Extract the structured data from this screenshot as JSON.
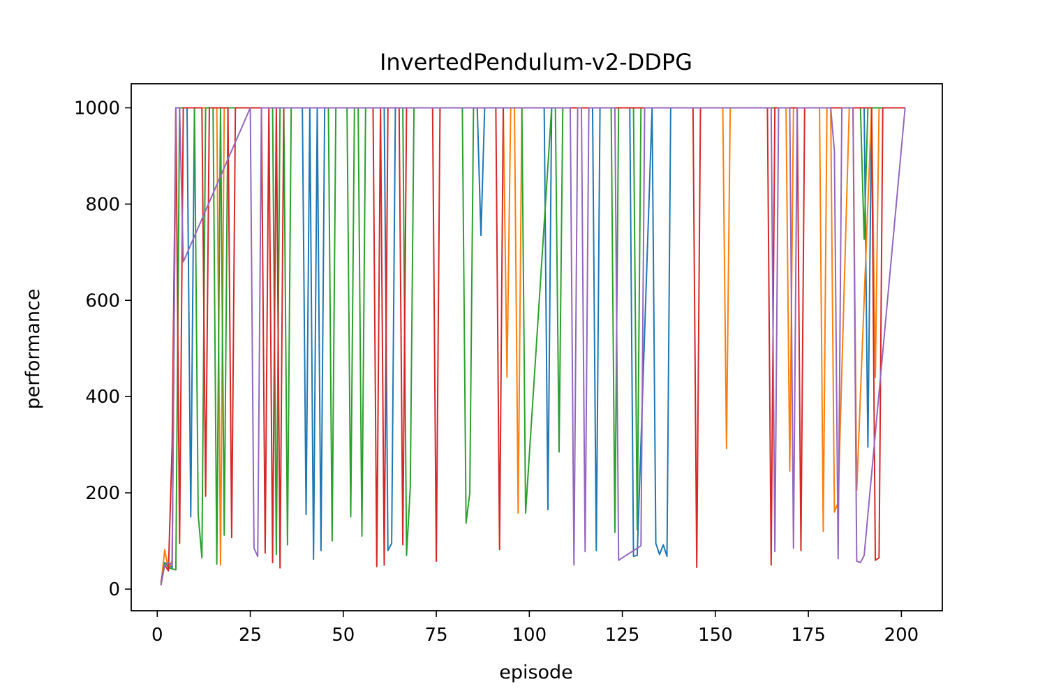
{
  "chart_data": {
    "type": "line",
    "title": "InvertedPendulum-v2-DDPG",
    "xlabel": "episode",
    "ylabel": "performance",
    "xlim": [
      -7,
      211
    ],
    "ylim": [
      -45,
      1050
    ],
    "xticks": [
      0,
      25,
      50,
      75,
      100,
      125,
      150,
      175,
      200
    ],
    "yticks": [
      0,
      200,
      400,
      600,
      800,
      1000
    ],
    "grid": false,
    "legend": "none",
    "series": [
      {
        "color": "#1f77b4",
        "x": [
          1,
          2,
          3,
          4,
          5,
          7,
          8,
          9,
          10,
          39,
          40,
          41,
          42,
          43,
          44,
          45,
          46,
          61,
          62,
          63,
          64,
          85,
          86,
          87,
          88,
          104,
          105,
          106,
          107,
          117,
          118,
          119,
          127,
          128,
          129,
          133,
          134,
          135,
          136,
          137,
          138,
          190,
          191,
          192,
          201
        ],
        "y": [
          10,
          55,
          50,
          45,
          1000,
          1000,
          1000,
          150,
          1000,
          1000,
          155,
          1000,
          62,
          1000,
          80,
          1000,
          1000,
          1000,
          80,
          95,
          1000,
          1000,
          1000,
          735,
          1000,
          1000,
          165,
          1000,
          1000,
          1000,
          80,
          1000,
          1000,
          68,
          70,
          1000,
          95,
          72,
          92,
          68,
          1000,
          1000,
          295,
          1000,
          1000
        ]
      },
      {
        "color": "#ff7f0e",
        "x": [
          1,
          2,
          3,
          4,
          5,
          6,
          15,
          16,
          17,
          18,
          92,
          93,
          94,
          95,
          96,
          97,
          98,
          152,
          153,
          154,
          169,
          170,
          171,
          178,
          179,
          180,
          181,
          182,
          183,
          186,
          187,
          188,
          192,
          193,
          194,
          201
        ],
        "y": [
          8,
          82,
          40,
          60,
          1000,
          1000,
          1000,
          1000,
          50,
          1000,
          1000,
          1000,
          440,
          1000,
          1000,
          158,
          1000,
          1000,
          292,
          1000,
          1000,
          245,
          1000,
          1000,
          120,
          1000,
          1000,
          160,
          180,
          1000,
          1000,
          205,
          1000,
          440,
          1000,
          1000
        ]
      },
      {
        "color": "#2ca02c",
        "x": [
          1,
          2,
          3,
          4,
          5,
          6,
          9,
          10,
          11,
          12,
          13,
          15,
          16,
          17,
          18,
          19,
          24,
          27,
          28,
          31,
          32,
          33,
          34,
          35,
          36,
          46,
          47,
          48,
          51,
          52,
          53,
          54,
          55,
          56,
          66,
          67,
          68,
          69,
          82,
          83,
          84,
          85,
          98,
          99,
          106,
          107,
          108,
          109,
          122,
          123,
          124,
          128,
          129,
          130,
          189,
          190,
          191,
          201
        ],
        "y": [
          12,
          55,
          45,
          42,
          40,
          1000,
          1000,
          1000,
          155,
          65,
          1000,
          1000,
          52,
          1000,
          112,
          1000,
          1000,
          1000,
          1000,
          1000,
          72,
          1000,
          1000,
          92,
          1000,
          1000,
          100,
          1000,
          1000,
          150,
          1000,
          1000,
          110,
          1000,
          1000,
          70,
          210,
          1000,
          1000,
          137,
          200,
          1000,
          1000,
          158,
          1000,
          1000,
          285,
          1000,
          1000,
          118,
          1000,
          1000,
          123,
          1000,
          1000,
          727,
          1000,
          1000
        ]
      },
      {
        "color": "#d62728",
        "x": [
          1,
          2,
          3,
          4,
          5,
          6,
          7,
          11,
          12,
          13,
          14,
          19,
          20,
          21,
          28,
          29,
          30,
          31,
          32,
          33,
          34,
          58,
          59,
          60,
          61,
          62,
          65,
          66,
          67,
          74,
          75,
          76,
          91,
          92,
          93,
          105,
          106,
          144,
          145,
          146,
          164,
          165,
          166,
          172,
          173,
          174,
          190,
          192,
          193,
          194,
          195,
          201
        ],
        "y": [
          15,
          50,
          38,
          300,
          1000,
          95,
          1000,
          1000,
          1000,
          193,
          1000,
          1000,
          107,
          1000,
          1000,
          75,
          1000,
          55,
          1000,
          44,
          1000,
          1000,
          47,
          1000,
          50,
          1000,
          1000,
          92,
          1000,
          1000,
          58,
          1000,
          1000,
          82,
          1000,
          1000,
          1000,
          1000,
          45,
          1000,
          1000,
          50,
          1000,
          1000,
          80,
          1000,
          1000,
          1000,
          60,
          65,
          1000,
          1000
        ]
      },
      {
        "color": "#9467bd",
        "x": [
          1,
          2,
          3,
          4,
          5,
          6,
          7,
          25,
          26,
          27,
          28,
          111,
          112,
          113,
          114,
          115,
          116,
          123,
          124,
          130,
          131,
          132,
          165,
          166,
          167,
          170,
          171,
          172,
          180,
          181,
          182,
          183,
          184,
          187,
          188,
          189,
          190,
          201
        ],
        "y": [
          8,
          50,
          55,
          50,
          1000,
          1000,
          680,
          1000,
          85,
          68,
          1000,
          1000,
          50,
          1000,
          1000,
          78,
          1000,
          1000,
          60,
          90,
          1000,
          1000,
          1000,
          78,
          1000,
          1000,
          85,
          1000,
          1000,
          1000,
          910,
          63,
          1000,
          1000,
          58,
          55,
          70,
          1000
        ]
      }
    ]
  }
}
